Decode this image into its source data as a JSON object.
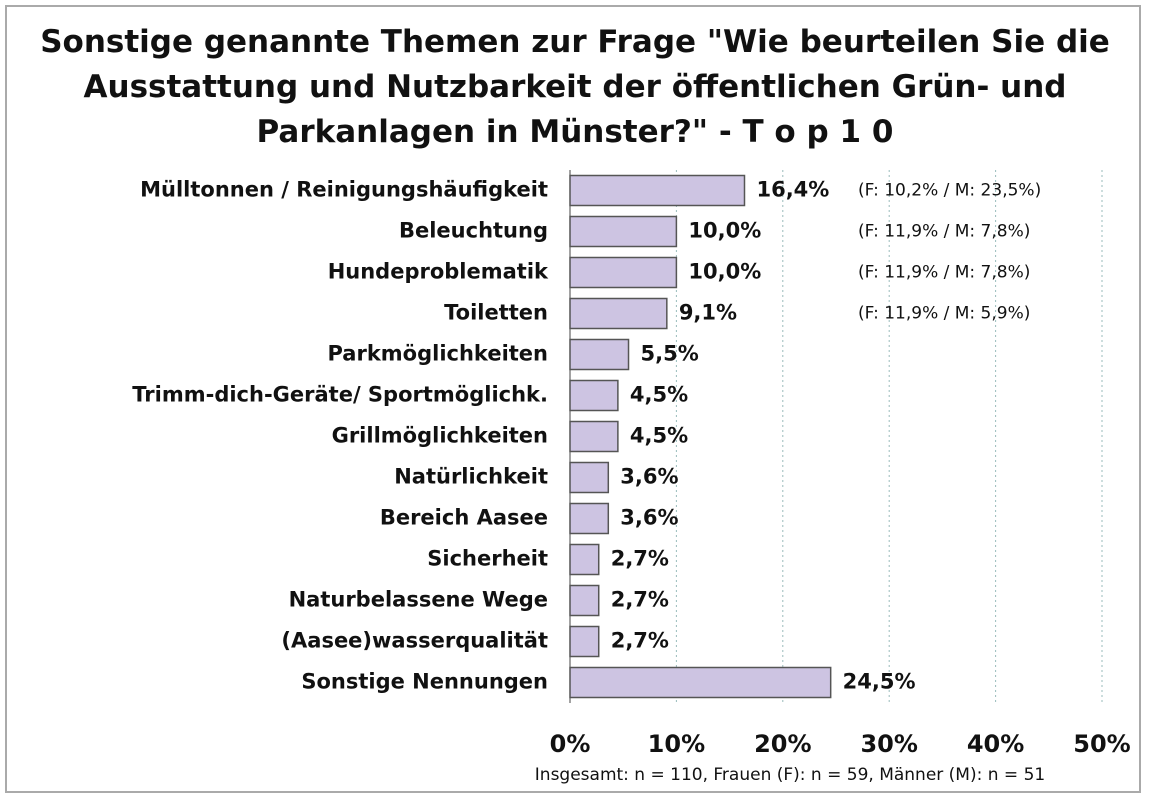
{
  "chart_data": {
    "type": "barh",
    "title": "Sonstige genannte Themen zur Frage \"Wie beurteilen Sie die Ausstattung und Nutzbarkeit der öffentlichen Grün- und Parkanlagen in Münster?\" - T o p 1 0",
    "categories": [
      "Mülltonnen / Reinigungshäufigkeit",
      "Beleuchtung",
      "Hundeproblematik",
      "Toiletten",
      "Parkmöglichkeiten",
      "Trimm-dich-Geräte/ Sportmöglichk.",
      "Grillmöglichkeiten",
      "Natürlichkeit",
      "Bereich Aasee",
      "Sicherheit",
      "Naturbelassene Wege",
      "(Aasee)wasserqualität",
      "Sonstige Nennungen"
    ],
    "values": [
      16.4,
      10.0,
      10.0,
      9.1,
      5.5,
      4.5,
      4.5,
      3.6,
      3.6,
      2.7,
      2.7,
      2.7,
      24.5
    ],
    "value_labels": [
      "16,4%",
      "10,0%",
      "10,0%",
      "9,1%",
      "5,5%",
      "4,5%",
      "4,5%",
      "3,6%",
      "3,6%",
      "2,7%",
      "2,7%",
      "2,7%",
      "24,5%"
    ],
    "annotations": [
      "(F: 10,2% / M: 23,5%)",
      "(F: 11,9% / M: 7,8%)",
      "(F: 11,9% / M: 7,8%)",
      "(F: 11,9% / M: 5,9%)"
    ],
    "color": "#cdc4e2",
    "xlim": [
      0,
      50
    ],
    "xticks": [
      {
        "value": 0,
        "label": "0%"
      },
      {
        "value": 10,
        "label": "10%"
      },
      {
        "value": 20,
        "label": "20%"
      },
      {
        "value": 30,
        "label": "30%"
      },
      {
        "value": 40,
        "label": "40%"
      },
      {
        "value": 50,
        "label": "50%"
      }
    ],
    "grid": true,
    "footnote": "Insgesamt: n = 110, Frauen (F): n = 59, Männer (M): n = 51"
  }
}
